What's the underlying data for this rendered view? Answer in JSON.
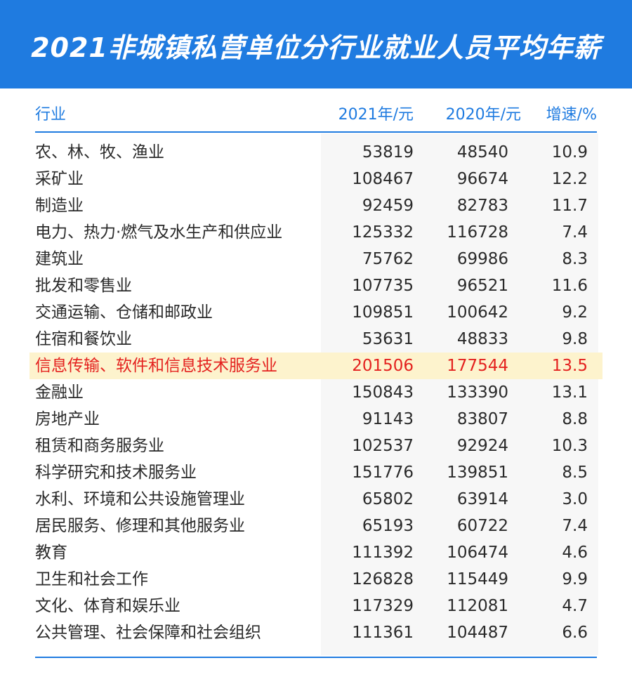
{
  "title": "2021非城镇私营单位分行业就业人员平均年薪",
  "columns": {
    "industry": "行业",
    "y2021": "2021年/元",
    "y2020": "2020年/元",
    "growth": "增速/%"
  },
  "highlight_color": "#e4221f",
  "accent_color": "#1f7be0",
  "rows": [
    {
      "industry": "农、林、牧、渔业",
      "y2021": "53819",
      "y2020": "48540",
      "growth": "10.9"
    },
    {
      "industry": "采矿业",
      "y2021": "108467",
      "y2020": "96674",
      "growth": "12.2"
    },
    {
      "industry": "制造业",
      "y2021": "92459",
      "y2020": "82783",
      "growth": "11.7"
    },
    {
      "industry": "电力、热力·燃气及水生产和供应业",
      "y2021": "125332",
      "y2020": "116728",
      "growth": "7.4"
    },
    {
      "industry": "建筑业",
      "y2021": "75762",
      "y2020": "69986",
      "growth": "8.3"
    },
    {
      "industry": "批发和零售业",
      "y2021": "107735",
      "y2020": "96521",
      "growth": "11.6"
    },
    {
      "industry": "交通运输、仓储和邮政业",
      "y2021": "109851",
      "y2020": "100642",
      "growth": "9.2"
    },
    {
      "industry": "住宿和餐饮业",
      "y2021": "53631",
      "y2020": "48833",
      "growth": "9.8"
    },
    {
      "industry": "信息传输、软件和信息技术服务业",
      "y2021": "201506",
      "y2020": "177544",
      "growth": "13.5",
      "highlighted": true
    },
    {
      "industry": "金融业",
      "y2021": "150843",
      "y2020": "133390",
      "growth": "13.1"
    },
    {
      "industry": "房地产业",
      "y2021": "91143",
      "y2020": "83807",
      "growth": "8.8"
    },
    {
      "industry": "租赁和商务服务业",
      "y2021": "102537",
      "y2020": "92924",
      "growth": "10.3"
    },
    {
      "industry": "科学研究和技术服务业",
      "y2021": "151776",
      "y2020": "139851",
      "growth": "8.5"
    },
    {
      "industry": "水利、环境和公共设施管理业",
      "y2021": "65802",
      "y2020": "63914",
      "growth": "3.0"
    },
    {
      "industry": "居民服务、修理和其他服务业",
      "y2021": "65193",
      "y2020": "60722",
      "growth": "7.4"
    },
    {
      "industry": "教育",
      "y2021": "111392",
      "y2020": "106474",
      "growth": "4.6"
    },
    {
      "industry": "卫生和社会工作",
      "y2021": "126828",
      "y2020": "115449",
      "growth": "9.9"
    },
    {
      "industry": "文化、体育和娱乐业",
      "y2021": "117329",
      "y2020": "112081",
      "growth": "4.7"
    },
    {
      "industry": "公共管理、社会保障和社会组织",
      "y2021": "111361",
      "y2020": "104487",
      "growth": "6.6"
    }
  ]
}
